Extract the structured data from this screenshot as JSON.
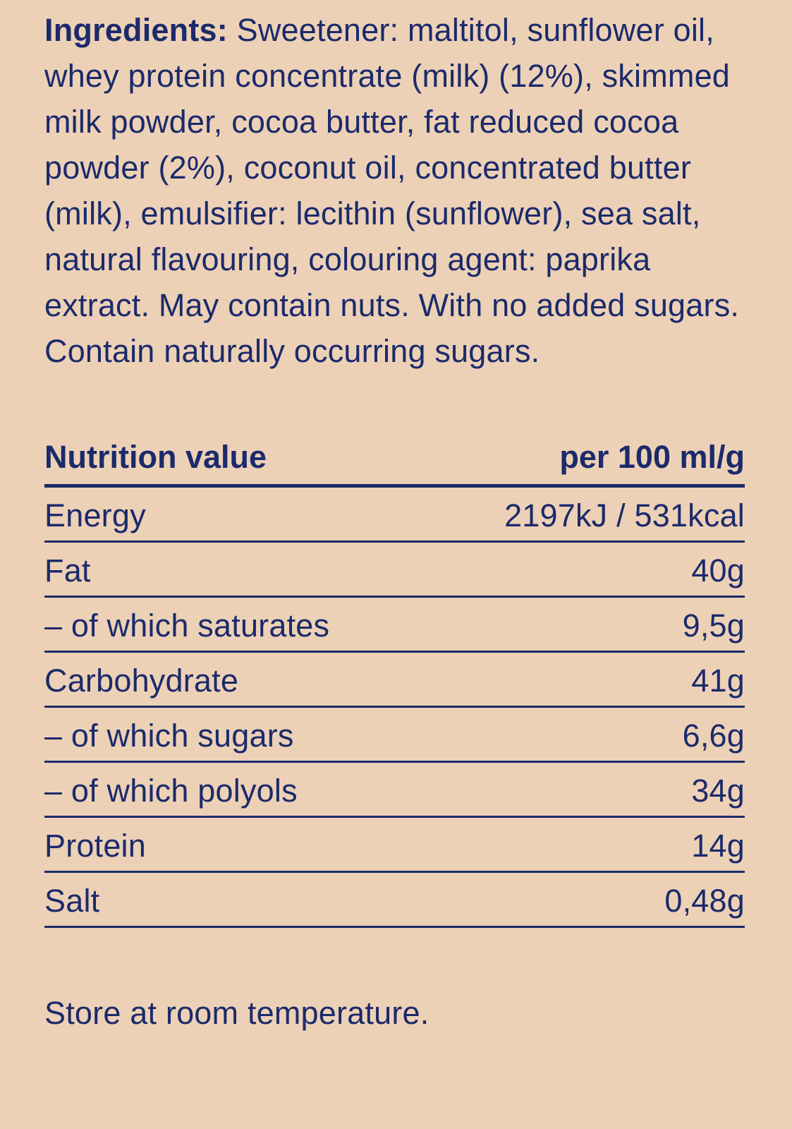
{
  "page": {
    "background_color": "#edd1b6",
    "text_color": "#1b2a6b"
  },
  "ingredients": {
    "label": "Ingredients:",
    "text": "Sweetener: maltitol, sunflower oil, whey protein concentrate (milk) (12%), skimmed milk powder, cocoa butter, fat reduced cocoa powder (2%), coconut oil, concentrated butter (milk), emulsifier: lecithin (sunflower), sea salt, natural flavouring, colouring agent: paprika extract. May contain nuts. With no added sugars. Contain naturally occurring sugars."
  },
  "nutrition": {
    "header": {
      "label": "Nutrition value",
      "value": "per 100 ml/g"
    },
    "rows": [
      {
        "label": "Energy",
        "value": "2197kJ / 531kcal"
      },
      {
        "label": "Fat",
        "value": "40g"
      },
      {
        "label": "– of which saturates",
        "value": "9,5g"
      },
      {
        "label": "Carbohydrate",
        "value": "41g"
      },
      {
        "label": "– of which sugars",
        "value": "6,6g"
      },
      {
        "label": "– of which polyols",
        "value": "34g"
      },
      {
        "label": "Protein",
        "value": "14g"
      },
      {
        "label": "Salt",
        "value": "0,48g"
      }
    ]
  },
  "storage": {
    "text": "Store at room temperature."
  }
}
